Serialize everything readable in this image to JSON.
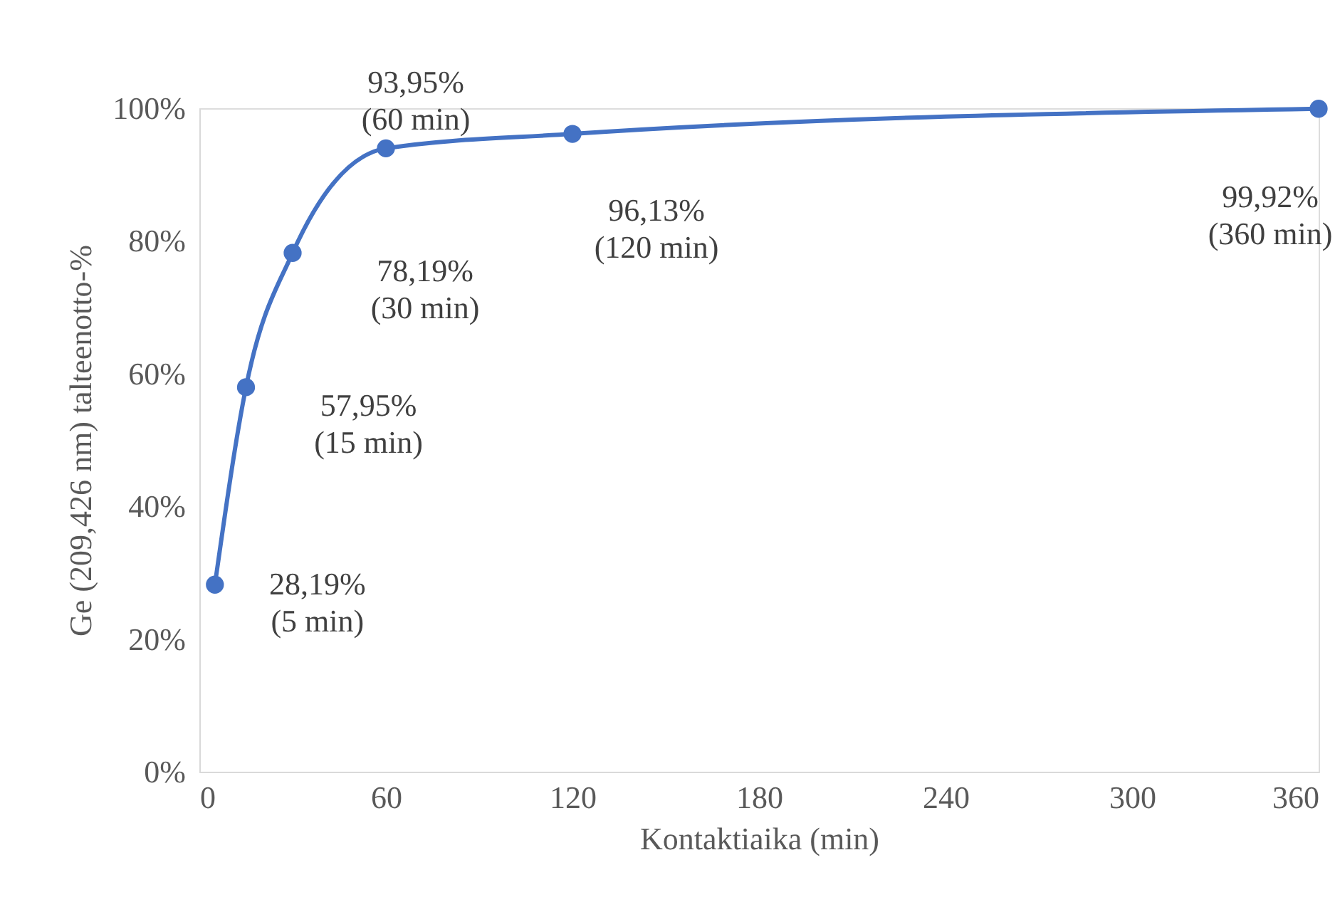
{
  "chart_data": {
    "type": "line",
    "xlabel": "Kontaktiaika (min)",
    "ylabel": "Ge (209,426 nm)  talteenotto-%",
    "x": [
      5,
      15,
      30,
      60,
      120,
      360
    ],
    "series": [
      {
        "color": "#4472c4",
        "values": [
          28.19,
          57.95,
          78.19,
          93.95,
          96.13,
          99.92
        ]
      }
    ],
    "xlim": [
      0,
      360
    ],
    "xticks": [
      0,
      60,
      120,
      180,
      240,
      300,
      360
    ],
    "ylim": [
      0,
      100
    ],
    "yticks": [
      {
        "value": 0,
        "label": "0%"
      },
      {
        "value": 20,
        "label": "20%"
      },
      {
        "value": 40,
        "label": "40%"
      },
      {
        "value": 60,
        "label": "60%"
      },
      {
        "value": 80,
        "label": "80%"
      },
      {
        "value": 100,
        "label": "100%"
      }
    ],
    "annotations": [
      {
        "text": "28,19%\n(5 min)",
        "x": 5,
        "y": 28.19
      },
      {
        "text": "57,95%\n(15 min)",
        "x": 15,
        "y": 57.95
      },
      {
        "text": "78,19%\n(30 min)",
        "x": 30,
        "y": 78.19
      },
      {
        "text": "93,95%\n(60 min)",
        "x": 60,
        "y": 93.95
      },
      {
        "text": "96,13%\n(120 min)",
        "x": 120,
        "y": 96.13
      },
      {
        "text": "99,92%\n(360 min)",
        "x": 360,
        "y": 99.92
      }
    ],
    "grid": false,
    "marker": "circle",
    "line_style": "solid"
  }
}
